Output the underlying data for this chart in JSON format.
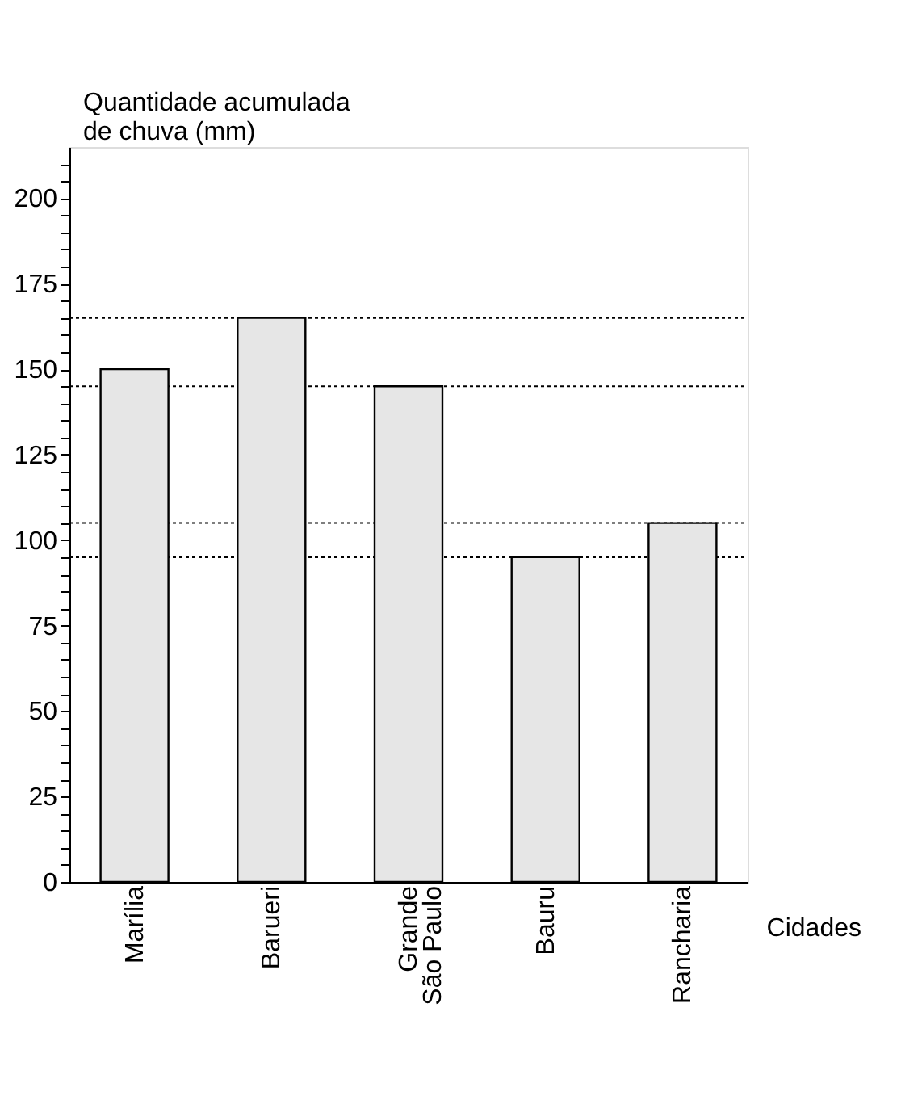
{
  "chart_data": {
    "type": "bar",
    "xlabel": "Cidades",
    "ylabel": "Quantidade acumulada de chuva (mm)",
    "categories": [
      "Marília",
      "Barueri",
      "Grande São Paulo",
      "Bauru",
      "Rancharia"
    ],
    "values": [
      150,
      165,
      145,
      95,
      105
    ],
    "color": "#e6e6e6",
    "ylim": [
      0,
      215
    ],
    "yticks": [
      0,
      {
        "value": 5,
        "label": null
      },
      {
        "value": 10,
        "label": null
      },
      {
        "value": 15,
        "label": null
      },
      {
        "value": 20,
        "label": null
      },
      25,
      {
        "value": 30,
        "label": null
      },
      {
        "value": 35,
        "label": null
      },
      {
        "value": 40,
        "label": null
      },
      {
        "value": 45,
        "label": null
      },
      50,
      {
        "value": 55,
        "label": null
      },
      {
        "value": 60,
        "label": null
      },
      {
        "value": 65,
        "label": null
      },
      {
        "value": 70,
        "label": null
      },
      75,
      {
        "value": 80,
        "label": null
      },
      {
        "value": 85,
        "label": null
      },
      {
        "value": 90,
        "label": null
      },
      {
        "value": 95,
        "label": null
      },
      100,
      {
        "value": 105,
        "label": null
      },
      {
        "value": 110,
        "label": null
      },
      {
        "value": 115,
        "label": null
      },
      {
        "value": 120,
        "label": null
      },
      125,
      {
        "value": 130,
        "label": null
      },
      {
        "value": 135,
        "label": null
      },
      {
        "value": 140,
        "label": null
      },
      {
        "value": 145,
        "label": null
      },
      150,
      {
        "value": 155,
        "label": null
      },
      {
        "value": 160,
        "label": null
      },
      {
        "value": 165,
        "label": null
      },
      {
        "value": 170,
        "label": null
      },
      175,
      {
        "value": 180,
        "label": null
      },
      {
        "value": 185,
        "label": null
      },
      {
        "value": 190,
        "label": null
      },
      {
        "value": 195,
        "label": null
      },
      200,
      {
        "value": 205,
        "label": null
      },
      {
        "value": 210,
        "label": null
      }
    ],
    "ref_lines": [
      {
        "axis": "y",
        "value": 165,
        "line_style": "dotted"
      },
      {
        "axis": "y",
        "value": 145,
        "line_style": "dotted"
      },
      {
        "axis": "y",
        "value": 105,
        "line_style": "dotted"
      },
      {
        "axis": "y",
        "value": 95,
        "line_style": "dotted"
      }
    ],
    "grid": false
  }
}
